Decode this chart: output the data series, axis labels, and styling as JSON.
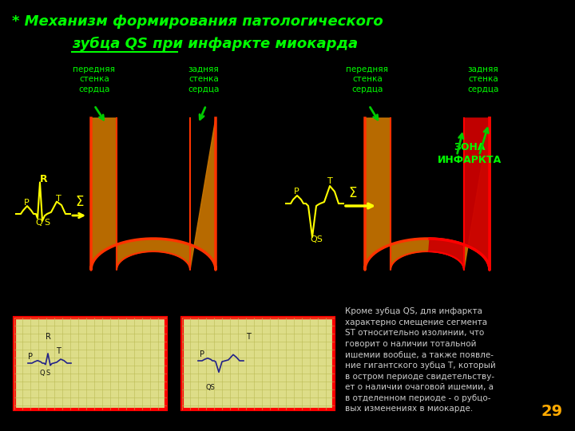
{
  "title_line1": "* Механизм формирования патологического",
  "title_line2": "зубца QS при инфаркте миокарда",
  "title_color": "#00ff00",
  "bg_color": "#000000",
  "label_color": "#00ff00",
  "yellow_color": "#ffff00",
  "heart_fill": "#cc7700",
  "heart_edge": "#ff3300",
  "infarct_fill": "#cc0000",
  "infarct_edge": "#ff0000",
  "text_bottom": "Кроме зубца QS, для инфаркта\nхарактерно смещение сегмента\nST относительно изолинии, что\nговорит о наличии тотальной\nишемии вообще, а также появле-\nние гигантского зубца Т, который\nв остром периоде свидетельству-\nет о наличии очаговой ишемии, а\nв отделенном периоде - о рубцо-\nвых изменениях в миокарде.",
  "page_number": "29"
}
